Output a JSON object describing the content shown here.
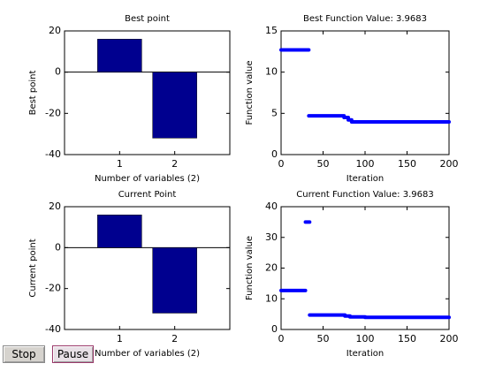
{
  "buttons": {
    "stop_label": "Stop",
    "pause_label": "Pause"
  },
  "colors": {
    "bar": "#00008f",
    "line": "#0000ff",
    "axis": "#000000"
  },
  "chart_data": [
    {
      "type": "bar",
      "title": "Best point",
      "xlabel": "Number of variables (2)",
      "ylabel": "Best point",
      "categories": [
        "1",
        "2"
      ],
      "values": [
        16,
        -32
      ],
      "ylim": [
        -40,
        20
      ],
      "yticks": [
        20,
        0,
        -20,
        -40
      ],
      "grid": false
    },
    {
      "type": "scatter",
      "title": "Best Function Value: 3.9683",
      "xlabel": "Iteration",
      "ylabel": "Function value",
      "xlim": [
        0,
        200
      ],
      "ylim": [
        0,
        15
      ],
      "xticks": [
        0,
        50,
        100,
        150,
        200
      ],
      "yticks": [
        0,
        5,
        10,
        15
      ],
      "segments": [
        {
          "x": [
            0,
            33
          ],
          "y": 12.7
        },
        {
          "x": [
            33,
            75
          ],
          "y": 4.7
        },
        {
          "x": [
            75,
            80
          ],
          "y": 4.5
        },
        {
          "x": [
            80,
            84
          ],
          "y": 4.2
        },
        {
          "x": [
            84,
            200
          ],
          "y": 3.9683
        }
      ],
      "grid": false
    },
    {
      "type": "bar",
      "title": "Current Point",
      "xlabel": "Number of variables (2)",
      "ylabel": "Current point",
      "categories": [
        "1",
        "2"
      ],
      "values": [
        16,
        -32
      ],
      "ylim": [
        -40,
        20
      ],
      "yticks": [
        20,
        0,
        -20,
        -40
      ],
      "grid": false
    },
    {
      "type": "scatter",
      "title": "Current Function Value: 3.9683",
      "xlabel": "Iteration",
      "ylabel": "Function value",
      "xlim": [
        0,
        200
      ],
      "ylim": [
        0,
        40
      ],
      "xticks": [
        0,
        50,
        100,
        150,
        200
      ],
      "yticks": [
        0,
        10,
        20,
        30,
        40
      ],
      "segments": [
        {
          "x": [
            0,
            29
          ],
          "y": 12.7
        },
        {
          "x": [
            29,
            34
          ],
          "y": 35
        },
        {
          "x": [
            34,
            76
          ],
          "y": 4.7
        },
        {
          "x": [
            76,
            82
          ],
          "y": 4.4
        },
        {
          "x": [
            82,
            100
          ],
          "y": 4.1
        },
        {
          "x": [
            100,
            200
          ],
          "y": 3.9683
        }
      ],
      "grid": false
    }
  ]
}
